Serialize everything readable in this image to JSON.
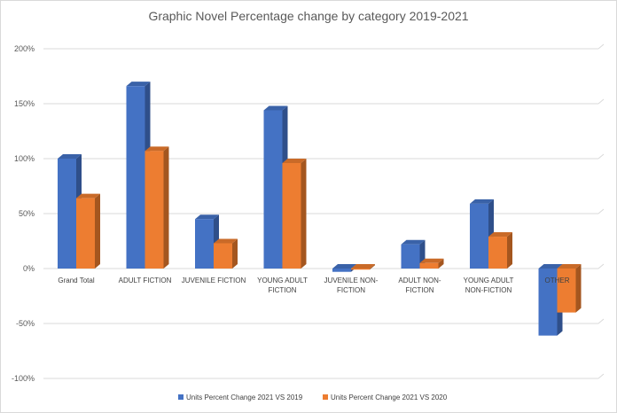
{
  "chart_data": {
    "type": "bar",
    "title": "Graphic Novel Percentage change by category 2019-2021",
    "xlabel": "",
    "ylabel": "",
    "ylim": [
      -100,
      200
    ],
    "ytick_step": 50,
    "ytick_labels": [
      "-100%",
      "-50%",
      "0%",
      "50%",
      "100%",
      "150%",
      "200%"
    ],
    "grid": true,
    "legend_position": "bottom",
    "categories": [
      [
        "Grand Total"
      ],
      [
        "ADULT FICTION"
      ],
      [
        "JUVENILE FICTION"
      ],
      [
        "YOUNG ADULT",
        "FICTION"
      ],
      [
        "JUVENILE NON-",
        "FICTION"
      ],
      [
        "ADULT NON-",
        "FICTION"
      ],
      [
        "YOUNG ADULT",
        "NON-FICTION"
      ],
      [
        "OTHER"
      ]
    ],
    "series": [
      {
        "name": "Units Percent Change 2021 VS 2019",
        "color": "#4472C4",
        "side_color": "#2F4F8A",
        "top_color": "#3A62A8",
        "values": [
          100,
          166,
          45,
          144,
          -3,
          22,
          59,
          -61
        ]
      },
      {
        "name": "Units Percent Change 2021 VS 2020",
        "color": "#ED7D31",
        "side_color": "#A4561F",
        "top_color": "#C96A28",
        "values": [
          64,
          107,
          23,
          96,
          -1,
          5,
          29,
          -40
        ]
      }
    ]
  }
}
